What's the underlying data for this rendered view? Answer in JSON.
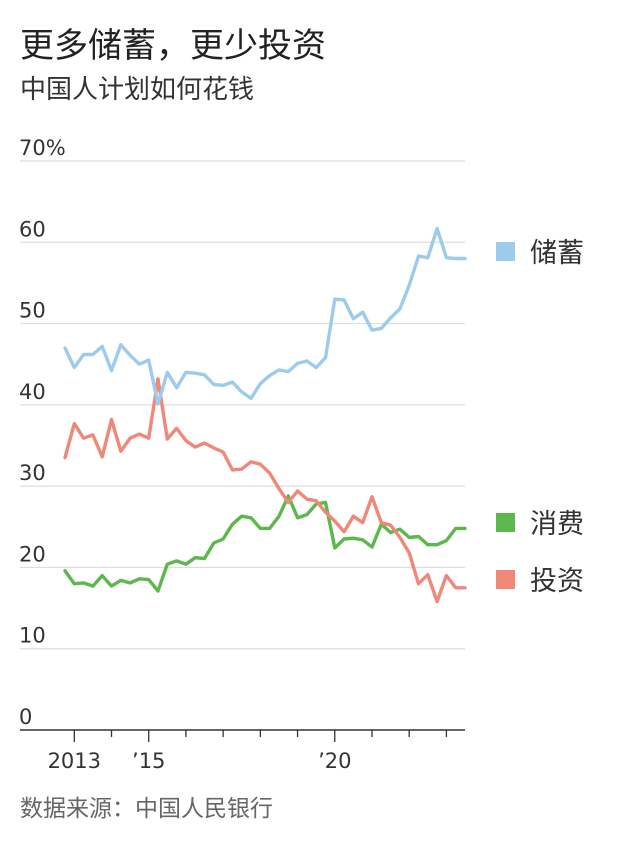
{
  "header": {
    "title": "更多储蓄，更少投资",
    "subtitle": "中国人计划如何花钱"
  },
  "source": "数据来源：中国人民银行",
  "chart_data": {
    "type": "line",
    "title": "更多储蓄，更少投资",
    "subtitle": "中国人计划如何花钱",
    "xlabel": "",
    "ylabel": "",
    "ylim": [
      0,
      70
    ],
    "y_ticks": [
      0,
      10,
      20,
      30,
      40,
      50,
      60,
      70
    ],
    "y_tick_labels": [
      "0",
      "10",
      "20",
      "30",
      "40",
      "50",
      "60",
      "70%"
    ],
    "x_range": [
      2012.75,
      2023.5
    ],
    "x_ticks": [
      {
        "x": 2013.0,
        "label": "2013"
      },
      {
        "x": 2015.0,
        "label": "’15"
      },
      {
        "x": 2020.0,
        "label": "’20"
      }
    ],
    "x_minor_ticks": [
      2013,
      2014,
      2015,
      2016,
      2017,
      2018,
      2019,
      2020,
      2021,
      2022,
      2023
    ],
    "grid": "horizontal",
    "legend_position": "right",
    "series": [
      {
        "name": "储蓄",
        "color": "#9dcbeb",
        "x": [
          2012.75,
          2013.0,
          2013.25,
          2013.5,
          2013.75,
          2014.0,
          2014.25,
          2014.5,
          2014.75,
          2015.0,
          2015.25,
          2015.5,
          2015.75,
          2016.0,
          2016.25,
          2016.5,
          2016.75,
          2017.0,
          2017.25,
          2017.5,
          2017.75,
          2018.0,
          2018.25,
          2018.5,
          2018.75,
          2019.0,
          2019.25,
          2019.5,
          2019.75,
          2020.0,
          2020.25,
          2020.5,
          2020.75,
          2021.0,
          2021.25,
          2021.5,
          2021.75,
          2022.0,
          2022.25,
          2022.5,
          2022.75,
          2023.0,
          2023.25,
          2023.5
        ],
        "values": [
          47.0,
          44.6,
          46.2,
          46.2,
          47.2,
          44.2,
          47.4,
          46.1,
          45.0,
          45.5,
          40.1,
          44.0,
          42.1,
          44.0,
          43.9,
          43.7,
          42.5,
          42.4,
          42.8,
          41.6,
          40.8,
          42.6,
          43.6,
          44.3,
          44.1,
          45.1,
          45.4,
          44.6,
          45.8,
          53.0,
          52.9,
          50.6,
          51.4,
          49.2,
          49.4,
          50.7,
          51.8,
          54.7,
          58.3,
          58.1,
          61.7,
          58.1,
          58.0,
          58.0
        ]
      },
      {
        "name": "消费",
        "color": "#5cb84c",
        "x": [
          2012.75,
          2013.0,
          2013.25,
          2013.5,
          2013.75,
          2014.0,
          2014.25,
          2014.5,
          2014.75,
          2015.0,
          2015.25,
          2015.5,
          2015.75,
          2016.0,
          2016.25,
          2016.5,
          2016.75,
          2017.0,
          2017.25,
          2017.5,
          2017.75,
          2018.0,
          2018.25,
          2018.5,
          2018.75,
          2019.0,
          2019.25,
          2019.5,
          2019.75,
          2020.0,
          2020.25,
          2020.5,
          2020.75,
          2021.0,
          2021.25,
          2021.5,
          2021.75,
          2022.0,
          2022.25,
          2022.5,
          2022.75,
          2023.0,
          2023.25,
          2023.5
        ],
        "values": [
          19.6,
          18.0,
          18.1,
          17.7,
          19.0,
          17.7,
          18.4,
          18.1,
          18.6,
          18.5,
          17.1,
          20.4,
          20.8,
          20.4,
          21.2,
          21.1,
          23.0,
          23.5,
          25.3,
          26.3,
          26.1,
          24.8,
          24.8,
          26.3,
          28.8,
          26.1,
          26.5,
          27.8,
          28.0,
          22.4,
          23.5,
          23.6,
          23.4,
          22.5,
          25.3,
          24.3,
          24.7,
          23.7,
          23.8,
          22.8,
          22.8,
          23.3,
          24.8,
          24.8
        ]
      },
      {
        "name": "投资",
        "color": "#ef8878",
        "x": [
          2012.75,
          2013.0,
          2013.25,
          2013.5,
          2013.75,
          2014.0,
          2014.25,
          2014.5,
          2014.75,
          2015.0,
          2015.25,
          2015.5,
          2015.75,
          2016.0,
          2016.25,
          2016.5,
          2016.75,
          2017.0,
          2017.25,
          2017.5,
          2017.75,
          2018.0,
          2018.25,
          2018.5,
          2018.75,
          2019.0,
          2019.25,
          2019.5,
          2019.75,
          2020.0,
          2020.25,
          2020.5,
          2020.75,
          2021.0,
          2021.25,
          2021.5,
          2021.75,
          2022.0,
          2022.25,
          2022.5,
          2022.75,
          2023.0,
          2023.25,
          2023.5
        ],
        "values": [
          33.5,
          37.7,
          35.9,
          36.3,
          33.6,
          38.2,
          34.3,
          35.9,
          36.4,
          35.9,
          43.2,
          35.8,
          37.1,
          35.6,
          34.8,
          35.3,
          34.7,
          34.2,
          32.0,
          32.1,
          33.0,
          32.7,
          31.6,
          29.7,
          28.0,
          29.4,
          28.4,
          28.2,
          26.8,
          25.7,
          24.4,
          26.3,
          25.5,
          28.7,
          25.5,
          25.2,
          23.7,
          21.8,
          18.0,
          19.1,
          15.8,
          19.0,
          17.5,
          17.5
        ]
      }
    ],
    "legend": [
      {
        "name": "储蓄",
        "color": "#9dcbeb"
      },
      {
        "name": "消费",
        "color": "#5cb84c"
      },
      {
        "name": "投资",
        "color": "#ef8878"
      }
    ]
  }
}
